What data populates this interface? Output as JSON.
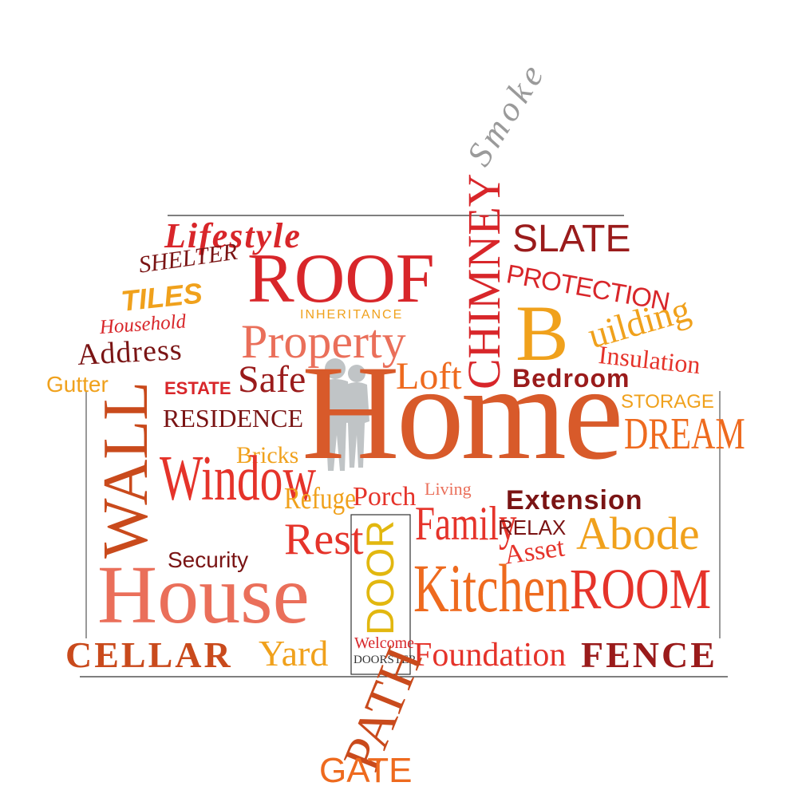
{
  "colors": {
    "dark_red": "#9a1b1b",
    "red": "#d8262a",
    "bright_red": "#e5332a",
    "orange_red": "#e8501f",
    "orange": "#ee6a1e",
    "dark_orange": "#c94a1c",
    "amber": "#f0a11c",
    "gold": "#e2b70f",
    "salmon": "#ea6f5a",
    "maroon": "#7a1414",
    "grey": "#9a9a9a",
    "figure_grey": "#c0c4c6",
    "outline": "#333333"
  },
  "icons": {
    "couple": "couple-silhouette-icon"
  },
  "words": {
    "smoke": "Smoke",
    "chimney": "CHIMNEY",
    "lifestyle": "Lifestyle",
    "slate": "SLATE",
    "shelter": "SHELTER",
    "roof": "ROOF",
    "protection": "PROTECTION",
    "tiles": "TILES",
    "inheritance": "INHERITANCE",
    "household": "Household",
    "property": "Property",
    "b": "B",
    "uilding": "uilding",
    "address": "Address",
    "insulation": "Insulation",
    "gutter": "Gutter",
    "estate": "ESTATE",
    "safe": "Safe",
    "loft": "Loft",
    "bedroom": "Bedroom",
    "home": "Home",
    "storage": "STORAGE",
    "residence": "RESIDENCE",
    "dream": "DREAM",
    "wall": "WALL",
    "bricks": "Bricks",
    "window": "Window",
    "refuge": "Refuge",
    "porch": "Porch",
    "living": "Living",
    "extension": "Extension",
    "family": "Family",
    "relax": "RELAX",
    "rest": "Rest",
    "door": "DOOR",
    "asset": "Asset",
    "abode": "Abode",
    "security": "Security",
    "house": "House",
    "kitchen": "Kitchen",
    "room": "ROOM",
    "cellar": "CELLAR",
    "yard": "Yard",
    "welcome": "Welcome",
    "doorstep": "DOORSTEP",
    "foundation": "Foundation",
    "fence": "FENCE",
    "path": "PATH",
    "gate": "GATE"
  }
}
